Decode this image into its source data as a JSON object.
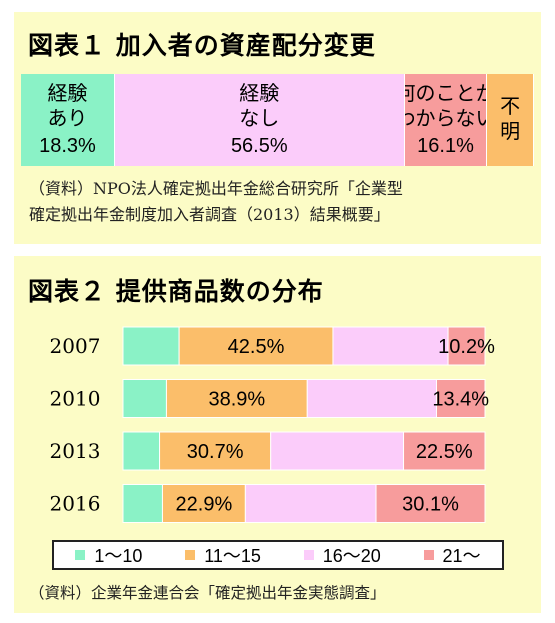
{
  "chart_data": [
    {
      "type": "bar",
      "title": "図表１ 加入者の資産配分変更",
      "stacked": true,
      "orientation": "horizontal",
      "segments": [
        {
          "label_lines": [
            "経験",
            "あり"
          ],
          "value": 18.3,
          "value_label": "18.3%",
          "color": "#8af2c6"
        },
        {
          "label_lines": [
            "経験",
            "なし"
          ],
          "value": 56.5,
          "value_label": "56.5%",
          "color": "#fbccfa"
        },
        {
          "label_lines": [
            "何のことか",
            "わからない"
          ],
          "value": 16.1,
          "value_label": "16.1%",
          "color": "#f79c9c"
        },
        {
          "label_lines": [
            "不",
            "明"
          ],
          "value": 9.1,
          "value_label": "",
          "color": "#fbbe6a"
        }
      ],
      "source_lines": [
        "（資料）NPO法人確定拠出年金総合研究所「企業型",
        "確定拠出年金制度加入者調査（2013）結果概要」"
      ]
    },
    {
      "type": "bar",
      "title": "図表２ 提供商品数の分布",
      "stacked": true,
      "orientation": "horizontal",
      "categories": [
        "2007",
        "2010",
        "2013",
        "2016"
      ],
      "xlim": [
        0,
        100
      ],
      "series": [
        {
          "name": "1～10",
          "color": "#8af2c6",
          "values": [
            15.5,
            12.0,
            10.1,
            10.9
          ],
          "labels": [
            "",
            "",
            "",
            ""
          ]
        },
        {
          "name": "11～15",
          "color": "#fbbe6a",
          "values": [
            42.5,
            38.9,
            30.7,
            22.9
          ],
          "labels": [
            "42.5%",
            "38.9%",
            "30.7%",
            "22.9%"
          ]
        },
        {
          "name": "16～20",
          "color": "#fbccfa",
          "values": [
            31.8,
            35.7,
            36.7,
            36.1
          ],
          "labels": [
            "",
            "",
            "",
            ""
          ]
        },
        {
          "name": "21～",
          "color": "#f79c9c",
          "values": [
            10.2,
            13.4,
            22.5,
            30.1
          ],
          "labels": [
            "10.2%",
            "13.4%",
            "22.5%",
            "30.1%"
          ]
        }
      ],
      "legend": "bottom",
      "source": "（資料）企業年金連合会「確定拠出年金実態調査」"
    }
  ]
}
